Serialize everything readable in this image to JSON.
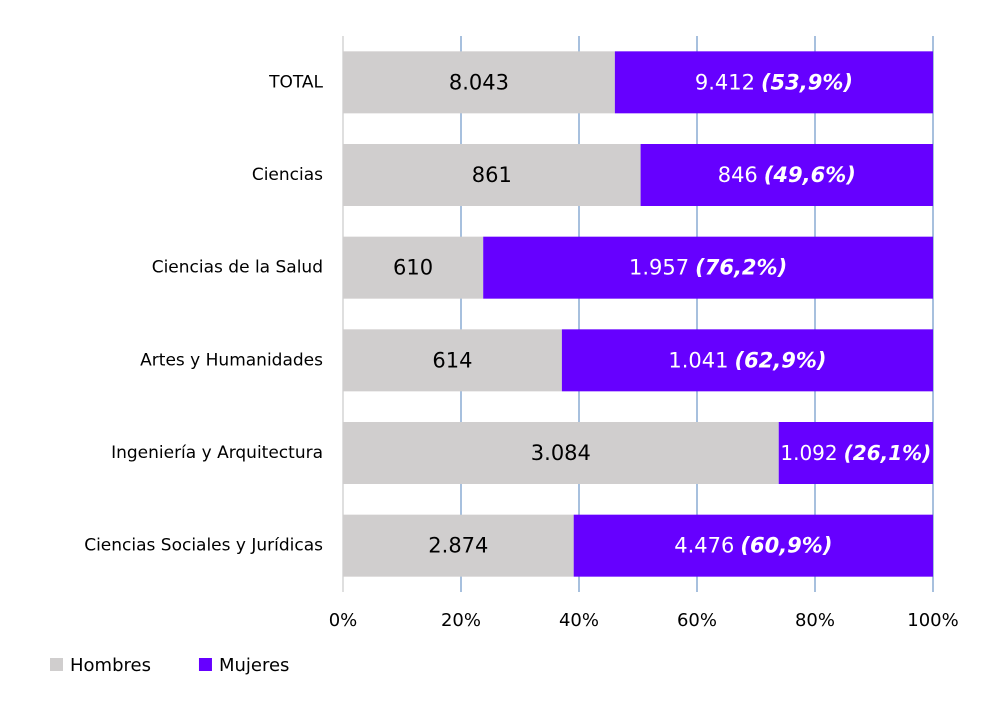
{
  "chart_data": {
    "type": "bar",
    "orientation": "horizontal",
    "stacked": "percent",
    "categories": [
      "TOTAL",
      "Ciencias",
      "Ciencias de la Salud",
      "Artes y Humanidades",
      "Ingeniería y Arquitectura",
      "Ciencias Sociales y Jurídicas"
    ],
    "series": [
      {
        "name": "Hombres",
        "color": "#d0cece",
        "label_color": "#000000",
        "values": [
          8043,
          861,
          610,
          614,
          3084,
          2874
        ],
        "value_labels": [
          "8.043",
          "861",
          "610",
          "614",
          "3.084",
          "2.874"
        ]
      },
      {
        "name": "Mujeres",
        "color": "#6600ff",
        "label_color": "#ffffff",
        "values": [
          9412,
          846,
          1957,
          1041,
          1092,
          4476
        ],
        "value_labels": [
          "9.412",
          "846",
          "1.957",
          "1.041",
          "1.092",
          "4.476"
        ],
        "shares": [
          53.9,
          49.6,
          76.2,
          62.9,
          26.1,
          60.9
        ],
        "share_labels": [
          "(53,9%)",
          "(49,6%)",
          "(76,2%)",
          "(62,9%)",
          "(26,1%)",
          "(60,9%)"
        ]
      }
    ],
    "xlim": [
      0,
      100
    ],
    "xticks": [
      {
        "value": 0,
        "label": "0%"
      },
      {
        "value": 20,
        "label": "20%"
      },
      {
        "value": 40,
        "label": "40%"
      },
      {
        "value": 60,
        "label": "60%"
      },
      {
        "value": 80,
        "label": "80%"
      },
      {
        "value": 100,
        "label": "100%"
      }
    ],
    "grid": true,
    "grid_color": "#4f81bd",
    "legend": "bottom-left"
  }
}
